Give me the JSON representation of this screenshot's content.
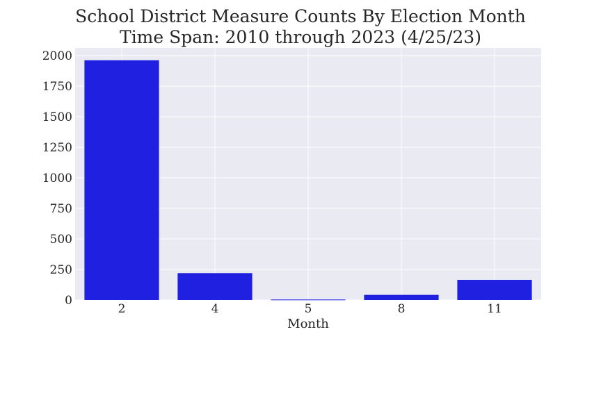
{
  "chart_data": {
    "type": "bar",
    "title": "School District Measure Counts By Election Month",
    "subtitle": "Time Span: 2010 through 2023 (4/25/23)",
    "xlabel": "Month",
    "ylabel": "",
    "categories": [
      "2",
      "4",
      "5",
      "8",
      "11"
    ],
    "values": [
      1962,
      220,
      4,
      42,
      165
    ],
    "ylim": [
      0,
      2063
    ],
    "yticks": [
      0,
      250,
      500,
      750,
      1000,
      1250,
      1500,
      1750,
      2000
    ],
    "ytick_labels": [
      "0",
      "250",
      "500",
      "750",
      "1000",
      "1250",
      "1500",
      "1750",
      "2000"
    ],
    "grid": true,
    "colors": {
      "bar": "#2020e0",
      "plot_background": "#eaeaf2",
      "grid": "#ffffff",
      "text": "#262626"
    }
  }
}
